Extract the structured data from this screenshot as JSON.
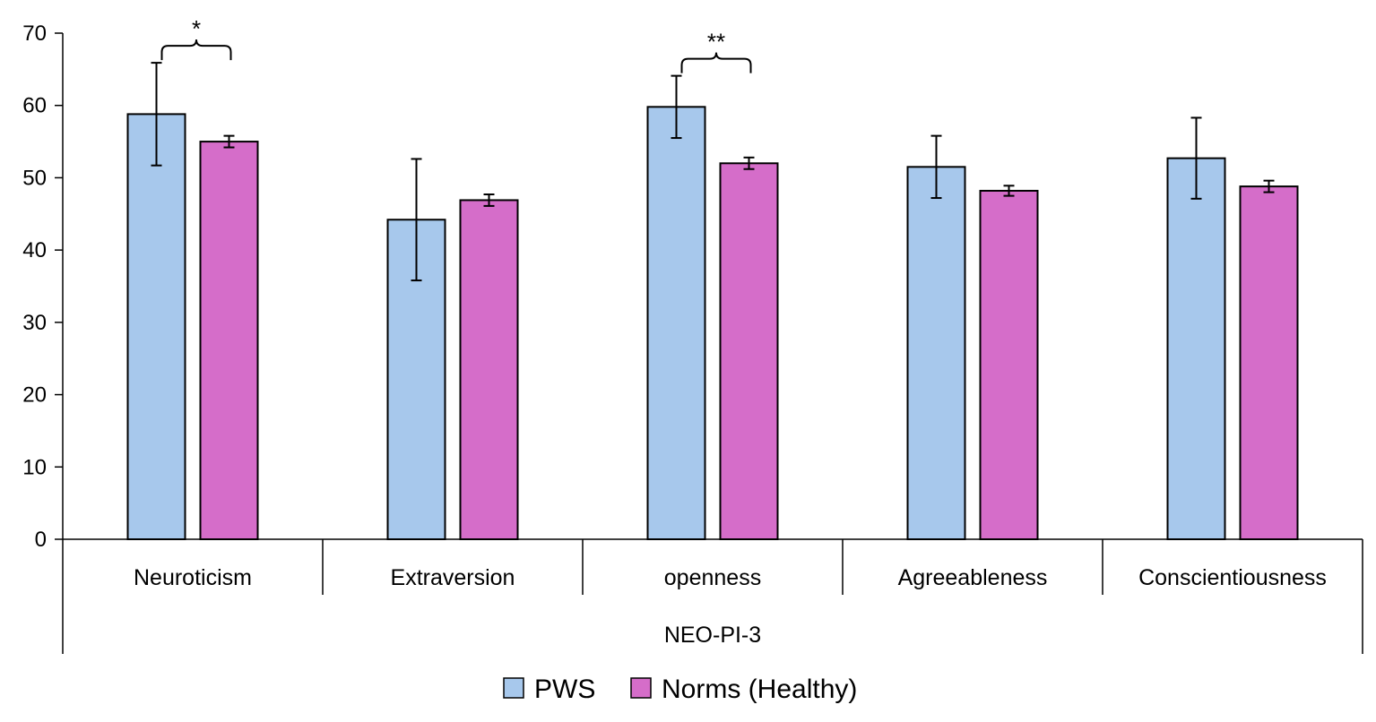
{
  "chart_data": {
    "type": "bar",
    "title": "",
    "xlabel": "NEO-PI-3",
    "ylabel": "",
    "ylim": [
      0,
      70
    ],
    "yticks": [
      0,
      10,
      20,
      30,
      40,
      50,
      60,
      70
    ],
    "grid": false,
    "categories": [
      "Neuroticism",
      "Extraversion",
      "openness",
      "Agreeableness",
      "Conscientiousness"
    ],
    "series": [
      {
        "name": "PWS",
        "color": "#A7C8EC",
        "values": [
          58.8,
          44.2,
          59.8,
          51.5,
          52.7
        ],
        "errors": [
          7.1,
          8.4,
          4.3,
          4.3,
          5.6
        ]
      },
      {
        "name": "Norms (Healthy)",
        "color": "#D56DC9",
        "values": [
          55.0,
          46.9,
          52.0,
          48.2,
          48.8
        ],
        "errors": [
          0.8,
          0.8,
          0.8,
          0.7,
          0.8
        ]
      }
    ],
    "significance": [
      {
        "category": "Neuroticism",
        "label": "*"
      },
      {
        "category": "openness",
        "label": "**"
      }
    ],
    "legend_position": "bottom-center"
  }
}
